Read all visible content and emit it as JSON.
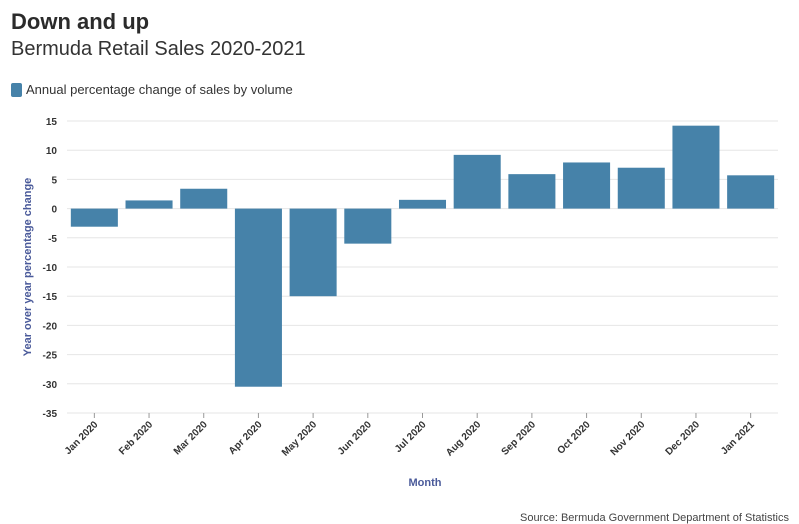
{
  "header": {
    "title": "Down and up",
    "subtitle": "Bermuda Retail Sales 2020-2021"
  },
  "legend": {
    "label": "Annual percentage change of sales by volume"
  },
  "source": "Source: Bermuda Government Department of Statistics",
  "colors": {
    "bar": "#4682a9",
    "grid": "#e6e6e6",
    "axis_title": "#4a5a9a"
  },
  "chart_data": {
    "type": "bar",
    "xlabel": "Month",
    "ylabel": "Year over year percentage change",
    "ylim": [
      -35,
      15
    ],
    "yticks": [
      15,
      10,
      5,
      0,
      -5,
      -10,
      -15,
      -20,
      -25,
      -30,
      -35
    ],
    "grid": true,
    "legend_position": "top-left",
    "categories": [
      "Jan 2020",
      "Feb 2020",
      "Mar 2020",
      "Apr 2020",
      "May 2020",
      "Jun 2020",
      "Jul 2020",
      "Aug 2020",
      "Sep 2020",
      "Oct 2020",
      "Nov 2020",
      "Dec 2020",
      "Jan 2021"
    ],
    "series": [
      {
        "values": [
          -3.1,
          1.4,
          3.4,
          -30.5,
          -15.0,
          -6.0,
          1.5,
          9.2,
          5.9,
          7.9,
          7.0,
          14.2,
          5.7
        ]
      }
    ]
  }
}
